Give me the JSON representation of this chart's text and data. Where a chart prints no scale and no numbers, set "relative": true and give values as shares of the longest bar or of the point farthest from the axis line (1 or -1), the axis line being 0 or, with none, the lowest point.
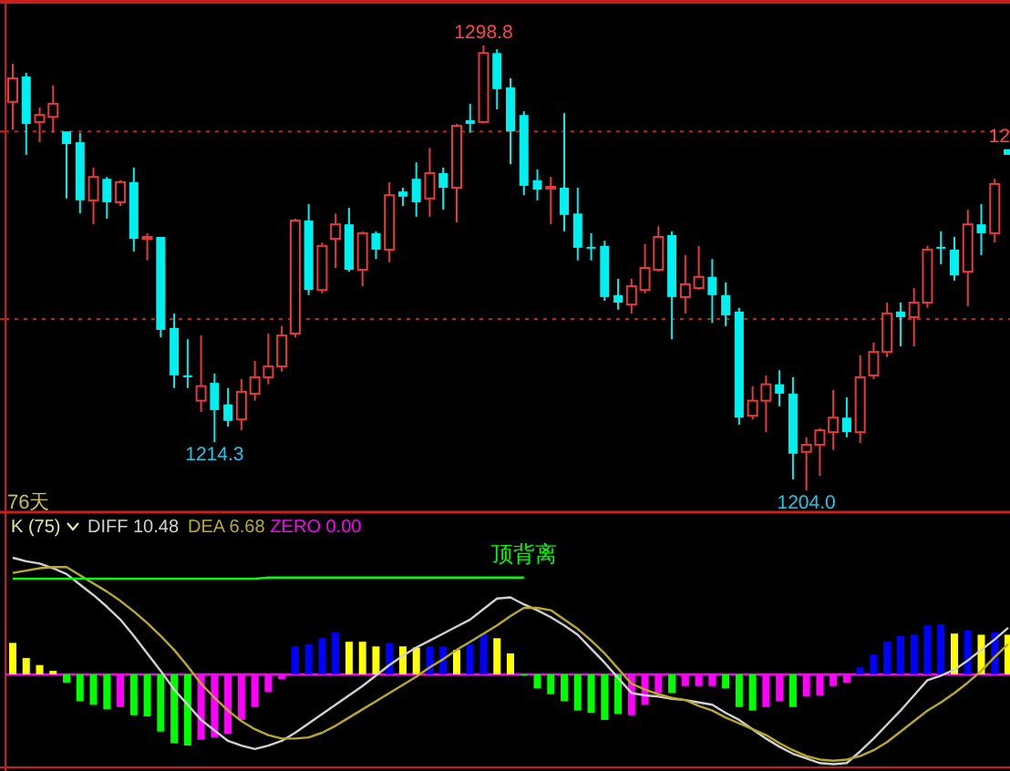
{
  "chart_data": [
    {
      "type": "candlestick",
      "categories": [
        null,
        null,
        null,
        null,
        null,
        null,
        null,
        null,
        null,
        null,
        null,
        null,
        null,
        null,
        null,
        null,
        null,
        null,
        null,
        null,
        null,
        null,
        null,
        null,
        null,
        null,
        null,
        null,
        null,
        null,
        null,
        null,
        null,
        null,
        null,
        null,
        null,
        null,
        null,
        null,
        null,
        null,
        null,
        null,
        null,
        null,
        null,
        null,
        null,
        null,
        null,
        null,
        null,
        null,
        null,
        null,
        null,
        null,
        null,
        null,
        null,
        null,
        null,
        null,
        null,
        null,
        null,
        null,
        null,
        null,
        null,
        null,
        null,
        null,
        null
      ],
      "ohlc": [
        [
          1286.8,
          1294.9,
          1280.9,
          1291.8
        ],
        [
          1292.2,
          1293.0,
          1275.5,
          1282.1
        ],
        [
          1282.5,
          1285.6,
          1278.2,
          1284.0
        ],
        [
          1283.6,
          1290.3,
          1280.2,
          1286.4
        ],
        [
          1280.5,
          1280.5,
          1266.2,
          1277.8
        ],
        [
          1278.2,
          1280.2,
          1263.0,
          1265.8
        ],
        [
          1265.8,
          1272.8,
          1260.7,
          1270.8
        ],
        [
          1270.4,
          1270.8,
          1261.9,
          1265.4
        ],
        [
          1265.4,
          1270.1,
          1264.6,
          1269.7
        ],
        [
          1269.7,
          1272.8,
          1254.9,
          1257.6
        ],
        [
          1257.6,
          1258.8,
          1253.0,
          1258.0
        ],
        [
          1258.0,
          1258.0,
          1236.6,
          1238.2
        ],
        [
          1238.6,
          1241.7,
          1225.8,
          1228.5
        ],
        [
          1228.5,
          1236.2,
          1225.8,
          1228.3
        ],
        [
          1223.1,
          1237.0,
          1220.7,
          1226.2
        ],
        [
          1226.9,
          1228.9,
          1214.3,
          1221.1
        ],
        [
          1222.3,
          1225.8,
          1217.6,
          1218.8
        ],
        [
          1219.1,
          1227.7,
          1216.8,
          1225.0
        ],
        [
          1224.6,
          1231.6,
          1223.1,
          1228.1
        ],
        [
          1228.1,
          1237.4,
          1226.6,
          1230.4
        ],
        [
          1230.4,
          1239.0,
          1229.3,
          1237.0
        ],
        [
          1237.4,
          1261.9,
          1236.6,
          1261.5
        ],
        [
          1261.5,
          1265.0,
          1245.6,
          1246.7
        ],
        [
          1246.7,
          1256.8,
          1246.0,
          1256.1
        ],
        [
          1257.6,
          1263.0,
          1251.4,
          1260.7
        ],
        [
          1260.7,
          1264.2,
          1250.6,
          1251.0
        ],
        [
          1251.0,
          1259.2,
          1247.5,
          1258.8
        ],
        [
          1258.8,
          1259.2,
          1253.3,
          1255.3
        ],
        [
          1255.3,
          1269.7,
          1252.6,
          1266.9
        ],
        [
          1267.7,
          1268.5,
          1264.6,
          1266.6
        ],
        [
          1270.4,
          1273.9,
          1262.3,
          1265.4
        ],
        [
          1266.2,
          1277.0,
          1262.3,
          1271.6
        ],
        [
          1271.6,
          1272.8,
          1263.8,
          1268.5
        ],
        [
          1268.5,
          1282.1,
          1261.1,
          1281.7
        ],
        [
          1282.9,
          1286.4,
          1280.2,
          1282.1
        ],
        [
          1282.5,
          1298.8,
          1282.3,
          1297.2
        ],
        [
          1297.2,
          1298.0,
          1285.2,
          1289.5
        ],
        [
          1289.9,
          1291.8,
          1273.5,
          1280.5
        ],
        [
          1284.0,
          1284.8,
          1266.9,
          1268.9
        ],
        [
          1270.1,
          1272.4,
          1265.8,
          1268.1
        ],
        [
          1268.5,
          1270.8,
          1260.7,
          1268.7
        ],
        [
          1268.5,
          1284.4,
          1259.2,
          1262.7
        ],
        [
          1263.0,
          1268.5,
          1253.0,
          1255.7
        ],
        [
          1255.9,
          1258.8,
          1253.0,
          1255.7
        ],
        [
          1256.1,
          1257.2,
          1244.4,
          1245.2
        ],
        [
          1245.6,
          1249.1,
          1242.5,
          1244.0
        ],
        [
          1243.6,
          1249.1,
          1241.7,
          1247.5
        ],
        [
          1246.7,
          1256.5,
          1246.0,
          1251.4
        ],
        [
          1251.0,
          1260.3,
          1250.6,
          1258.0
        ],
        [
          1258.4,
          1259.2,
          1236.2,
          1245.2
        ],
        [
          1245.2,
          1254.1,
          1241.7,
          1247.9
        ],
        [
          1247.1,
          1256.1,
          1246.7,
          1249.5
        ],
        [
          1249.5,
          1253.3,
          1239.7,
          1245.6
        ],
        [
          1245.6,
          1248.3,
          1239.0,
          1241.3
        ],
        [
          1242.1,
          1242.9,
          1218.0,
          1219.5
        ],
        [
          1219.9,
          1226.2,
          1219.1,
          1223.1
        ],
        [
          1223.1,
          1228.5,
          1216.4,
          1226.6
        ],
        [
          1226.6,
          1229.6,
          1221.9,
          1224.6
        ],
        [
          1224.6,
          1228.1,
          1206.3,
          1211.8
        ],
        [
          1212.2,
          1215.3,
          1204.0,
          1213.7
        ],
        [
          1213.7,
          1217.2,
          1207.1,
          1216.8
        ],
        [
          1216.4,
          1225.4,
          1212.6,
          1219.5
        ],
        [
          1219.5,
          1223.8,
          1215.3,
          1216.4
        ],
        [
          1216.4,
          1232.8,
          1214.1,
          1228.1
        ],
        [
          1228.5,
          1235.5,
          1227.7,
          1233.5
        ],
        [
          1233.5,
          1244.0,
          1232.4,
          1241.7
        ],
        [
          1242.1,
          1244.0,
          1234.7,
          1240.9
        ],
        [
          1240.9,
          1247.1,
          1234.7,
          1244.0
        ],
        [
          1244.0,
          1256.1,
          1242.9,
          1255.3
        ],
        [
          1255.9,
          1259.2,
          1252.2,
          1255.5
        ],
        [
          1255.3,
          1258.0,
          1248.7,
          1249.8
        ],
        [
          1250.6,
          1263.8,
          1243.2,
          1260.7
        ],
        [
          1260.7,
          1265.0,
          1254.1,
          1258.8
        ],
        [
          1258.8,
          1270.4,
          1256.8,
          1269.3
        ],
        [
          1276.7,
          1276.7,
          1275.5,
          1275.5
        ]
      ],
      "colors": [
        "#e83a3a",
        "#00f0f0",
        "#e83a3a",
        "#e83a3a",
        "#00f0f0",
        "#00f0f0",
        "#e83a3a",
        "#00f0f0",
        "#e83a3a",
        "#00f0f0",
        "#e83a3a",
        "#00f0f0",
        "#00f0f0",
        "#00f0f0",
        "#e83a3a",
        "#00f0f0",
        "#00f0f0",
        "#e83a3a",
        "#e83a3a",
        "#e83a3a",
        "#e83a3a",
        "#e83a3a",
        "#00f0f0",
        "#e83a3a",
        "#e83a3a",
        "#00f0f0",
        "#e83a3a",
        "#00f0f0",
        "#e83a3a",
        "#00f0f0",
        "#00f0f0",
        "#e83a3a",
        "#00f0f0",
        "#e83a3a",
        "#00f0f0",
        "#e83a3a",
        "#00f0f0",
        "#00f0f0",
        "#00f0f0",
        "#00f0f0",
        "#e83a3a",
        "#00f0f0",
        "#00f0f0",
        "#00f0f0",
        "#00f0f0",
        "#00f0f0",
        "#e83a3a",
        "#e83a3a",
        "#e83a3a",
        "#00f0f0",
        "#e83a3a",
        "#e83a3a",
        "#00f0f0",
        "#00f0f0",
        "#00f0f0",
        "#e83a3a",
        "#e83a3a",
        "#00f0f0",
        "#00f0f0",
        "#e83a3a",
        "#e83a3a",
        "#e83a3a",
        "#00f0f0",
        "#e83a3a",
        "#e83a3a",
        "#e83a3a",
        "#00f0f0",
        "#e83a3a",
        "#e83a3a",
        "#00f0f0",
        "#00f0f0",
        "#e83a3a",
        "#00f0f0",
        "#e83a3a",
        "#00f0f0"
      ],
      "yticks": [
        {
          "value": 1280.5,
          "label": null
        },
        {
          "value": 1240.5,
          "label": null
        }
      ],
      "grid": "y",
      "annotations": [
        {
          "text": "1298.8",
          "y": 1298.8
        },
        {
          "text": "1214.3",
          "y": 1214.3
        },
        {
          "text": "1204.0",
          "y": 1204.0
        },
        {
          "text": "12",
          "y": 1276.7
        },
        "76天"
      ]
    },
    {
      "type": "bar",
      "relative": true,
      "title": "K (75)",
      "legend": "top left",
      "categories": [
        null,
        null,
        null,
        null,
        null,
        null,
        null,
        null,
        null,
        null,
        null,
        null,
        null,
        null,
        null,
        null,
        null,
        null,
        null,
        null,
        null,
        null,
        null,
        null,
        null,
        null,
        null,
        null,
        null,
        null,
        null,
        null,
        null,
        null,
        null,
        null,
        null,
        null,
        null,
        null,
        null,
        null,
        null,
        null,
        null,
        null,
        null,
        null,
        null,
        null,
        null,
        null,
        null,
        null,
        null,
        null,
        null,
        null,
        null,
        null,
        null,
        null,
        null,
        null,
        null,
        null,
        null,
        null,
        null,
        null,
        null,
        null,
        null,
        null,
        null
      ],
      "series": [
        {
          "type": "bar",
          "colors": [
            "#ffff00",
            "#ffff00",
            "#ffff00",
            "#ffff00",
            "#00ff00",
            "#00ff00",
            "#00ff00",
            "#00ff00",
            "#ff00ff",
            "#00ff00",
            "#00ff00",
            "#00ff00",
            "#00ff00",
            "#00ff00",
            "#ff00ff",
            "#ff00ff",
            "#ff00ff",
            "#ff00ff",
            "#ff00ff",
            "#ff00ff",
            "#ff00ff",
            "#0000ff",
            "#0000ff",
            "#0000ff",
            "#0000ff",
            "#ffff00",
            "#ffff00",
            "#ffff00",
            "#0000ff",
            "#ffff00",
            "#ffff00",
            "#0000ff",
            "#0000ff",
            "#ffff00",
            "#0000ff",
            "#0000ff",
            "#ffff00",
            "#ffff00",
            "#00ff00",
            "#00ff00",
            "#00ff00",
            "#00ff00",
            "#00ff00",
            "#00ff00",
            "#00ff00",
            "#00ff00",
            "#ff00ff",
            "#ff00ff",
            "#ff00ff",
            "#00ff00",
            "#ff00ff",
            "#ff00ff",
            "#ff00ff",
            "#00ff00",
            "#00ff00",
            "#00ff00",
            "#ff00ff",
            "#ff00ff",
            "#00ff00",
            "#ff00ff",
            "#ff00ff",
            "#ff00ff",
            "#ff00ff",
            "#0000ff",
            "#0000ff",
            "#0000ff",
            "#0000ff",
            "#0000ff",
            "#0000ff",
            "#0000ff",
            "#ffff00",
            "#0000ff",
            "#ffff00",
            "#0000ff",
            "#ffff00"
          ],
          "values": [
            0.27,
            0.14,
            0.08,
            0.03,
            -0.07,
            -0.23,
            -0.26,
            -0.3,
            -0.28,
            -0.35,
            -0.36,
            -0.49,
            -0.59,
            -0.61,
            -0.56,
            -0.54,
            -0.51,
            -0.39,
            -0.28,
            -0.15,
            -0.04,
            0.24,
            0.26,
            0.31,
            0.36,
            0.28,
            0.28,
            0.24,
            0.27,
            0.24,
            0.23,
            0.24,
            0.24,
            0.21,
            0.26,
            0.35,
            0.31,
            0.18,
            -0.01,
            -0.12,
            -0.17,
            -0.23,
            -0.31,
            -0.33,
            -0.39,
            -0.34,
            -0.35,
            -0.26,
            -0.16,
            -0.16,
            -0.1,
            -0.1,
            -0.1,
            -0.12,
            -0.28,
            -0.31,
            -0.28,
            -0.23,
            -0.28,
            -0.19,
            -0.18,
            -0.1,
            -0.07,
            0.06,
            0.17,
            0.28,
            0.33,
            0.34,
            0.42,
            0.43,
            0.35,
            0.38,
            0.34,
            0.36,
            0.34
          ]
        },
        {
          "type": "line",
          "name": "DIFF 10.48",
          "color": "#d0d0d0",
          "values": [
            1.0,
            0.97,
            0.95,
            0.91,
            0.86,
            0.77,
            0.68,
            0.58,
            0.47,
            0.33,
            0.18,
            0.03,
            -0.13,
            -0.26,
            -0.39,
            -0.48,
            -0.57,
            -0.61,
            -0.64,
            -0.61,
            -0.57,
            -0.5,
            -0.42,
            -0.34,
            -0.26,
            -0.18,
            -0.1,
            -0.01,
            0.08,
            0.16,
            0.23,
            0.29,
            0.35,
            0.41,
            0.47,
            0.56,
            0.65,
            0.66,
            0.6,
            0.55,
            0.49,
            0.42,
            0.34,
            0.22,
            0.1,
            -0.03,
            -0.16,
            -0.18,
            -0.19,
            -0.21,
            -0.22,
            -0.24,
            -0.26,
            -0.33,
            -0.39,
            -0.47,
            -0.55,
            -0.62,
            -0.68,
            -0.72,
            -0.76,
            -0.77,
            -0.76,
            -0.66,
            -0.55,
            -0.43,
            -0.31,
            -0.18,
            -0.05,
            -0.01,
            0.04,
            0.12,
            0.21,
            0.3,
            0.4
          ]
        },
        {
          "type": "line",
          "name": "DEA 6.68",
          "color": "#b8aa28",
          "values": [
            0.87,
            0.89,
            0.91,
            0.92,
            0.92,
            0.85,
            0.78,
            0.71,
            0.63,
            0.54,
            0.44,
            0.33,
            0.21,
            0.07,
            -0.08,
            -0.2,
            -0.31,
            -0.4,
            -0.47,
            -0.52,
            -0.55,
            -0.55,
            -0.54,
            -0.5,
            -0.44,
            -0.37,
            -0.3,
            -0.23,
            -0.16,
            -0.09,
            -0.02,
            0.06,
            0.13,
            0.21,
            0.28,
            0.35,
            0.42,
            0.5,
            0.57,
            0.57,
            0.55,
            0.47,
            0.39,
            0.29,
            0.18,
            0.05,
            -0.08,
            -0.13,
            -0.17,
            -0.2,
            -0.22,
            -0.27,
            -0.31,
            -0.37,
            -0.42,
            -0.47,
            -0.52,
            -0.59,
            -0.65,
            -0.7,
            -0.73,
            -0.74,
            -0.73,
            -0.7,
            -0.65,
            -0.58,
            -0.49,
            -0.4,
            -0.31,
            -0.24,
            -0.16,
            -0.07,
            0.03,
            0.15,
            0.26
          ]
        },
        {
          "type": "line",
          "name": "顶背离",
          "color": "#00ff00",
          "values": [
            0.82,
            0.82,
            0.82,
            0.82,
            0.82,
            0.82,
            0.82,
            0.82,
            0.82,
            0.82,
            0.82,
            0.82,
            0.82,
            0.82,
            0.82,
            0.82,
            0.82,
            0.82,
            0.82,
            0.83,
            0.83,
            0.83,
            0.83,
            0.83,
            0.83,
            0.83,
            0.83,
            0.83,
            0.83,
            0.83,
            0.83,
            0.83,
            0.83,
            0.83,
            0.83,
            0.83,
            0.83,
            0.83,
            0.83,
            null,
            null,
            null,
            null,
            null,
            null,
            null,
            null,
            null,
            null,
            null,
            null,
            null,
            null,
            null,
            null,
            null,
            null,
            null,
            null,
            null,
            null,
            null,
            null,
            null,
            null,
            null,
            null,
            null,
            null,
            null,
            null,
            null,
            null,
            null,
            null
          ]
        }
      ],
      "ref_lines": [
        {
          "axis": "y",
          "value": 0,
          "label": "ZERO 0.00",
          "color": "#ff00ff"
        }
      ]
    }
  ]
}
